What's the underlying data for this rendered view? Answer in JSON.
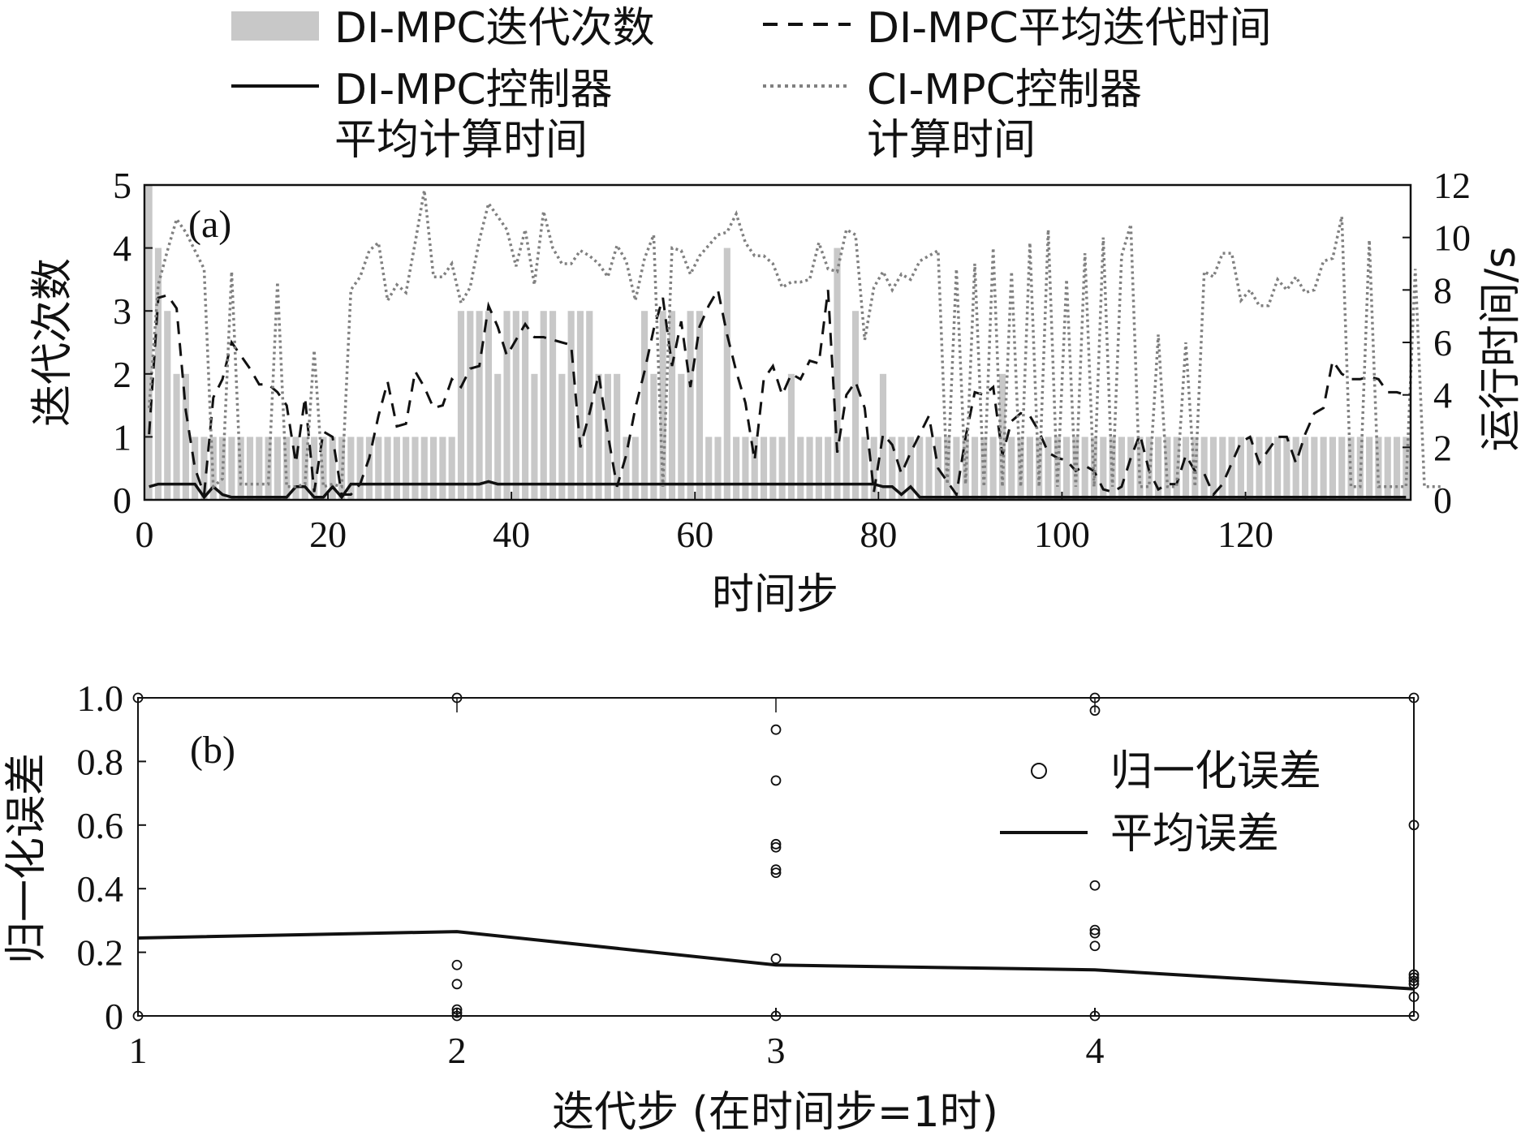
{
  "chart_data": [
    {
      "type": "bar+line",
      "panel_label": "(a)",
      "xlabel": "时间步",
      "ylabel_left": "迭代次数",
      "ylabel_right": "运行时间/s",
      "xlim": [
        0,
        138
      ],
      "ylim_left": [
        0,
        5
      ],
      "ylim_right": [
        0,
        12
      ],
      "x_ticks": [
        0,
        20,
        40,
        60,
        80,
        100,
        120
      ],
      "y_ticks_left": [
        0,
        1,
        2,
        3,
        4,
        5
      ],
      "y_ticks_right": [
        0,
        2,
        4,
        6,
        8,
        10,
        12
      ],
      "colors": {
        "bars": "#c8c8c8",
        "iter_time": "#111111",
        "di_comp": "#111111",
        "ci_comp": "#808080"
      },
      "legend": {
        "bars": "DI-MPC迭代次数",
        "iter_time": "DI-MPC平均迭代时间",
        "di_comp_line1": "DI-MPC控制器",
        "di_comp_line2": "平均计算时间",
        "ci_comp_line1": "CI-MPC控制器",
        "ci_comp_line2": "计算时间"
      },
      "iterations": [
        5,
        4,
        3,
        2,
        2,
        1,
        1,
        1,
        1,
        1,
        1,
        1,
        1,
        1,
        1,
        1,
        1,
        1,
        1,
        1,
        1,
        1,
        1,
        1,
        1,
        1,
        1,
        1,
        1,
        1,
        1,
        1,
        1,
        1,
        3,
        3,
        3,
        3,
        2,
        3,
        3,
        3,
        2,
        3,
        3,
        2,
        3,
        3,
        3,
        2,
        2,
        2,
        1,
        1,
        3,
        2,
        3,
        3,
        2,
        3,
        3,
        1,
        1,
        4,
        1,
        1,
        1,
        1,
        1,
        1,
        2,
        1,
        1,
        1,
        1,
        4,
        1,
        3,
        1,
        1,
        2,
        1,
        1,
        1,
        1,
        1,
        1,
        1,
        1,
        1,
        1,
        1,
        1,
        2,
        1,
        1,
        1,
        1,
        1,
        1,
        1,
        1,
        1,
        1,
        1,
        1,
        1,
        1,
        1,
        1,
        1,
        1,
        1,
        1,
        1,
        1,
        1,
        1,
        1,
        1,
        1,
        1,
        1,
        1,
        1,
        1,
        1,
        1,
        1,
        1,
        1,
        1,
        1,
        1,
        1,
        1,
        1,
        1
      ],
      "series": [
        {
          "name": "DI-MPC平均迭代时间",
          "style": "dashed",
          "values": [
            2.5,
            7.7,
            7.8,
            7.3,
            3.4,
            1.2,
            0.2,
            3.9,
            4.6,
            6.0,
            5.5,
            5.0,
            4.4,
            4.4,
            4.1,
            3.6,
            1.4,
            3.9,
            0.3,
            2.6,
            2.4,
            0.2,
            0.2,
            0.6,
            1.6,
            3.2,
            4.5,
            2.8,
            2.9,
            4.9,
            4.3,
            3.5,
            3.6,
            4.6,
            4.3,
            5.0,
            5.1,
            7.4,
            6.6,
            5.5,
            6.1,
            6.7,
            6.2,
            6.2,
            6.1,
            6.0,
            5.9,
            2.0,
            3.3,
            4.8,
            2.5,
            0.5,
            1.7,
            3.5,
            4.9,
            6.5,
            7.7,
            5.1,
            6.8,
            4.3,
            6.6,
            7.4,
            8.0,
            6.3,
            4.9,
            3.7,
            1.5,
            4.6,
            5.1,
            4.0,
            4.8,
            4.6,
            5.3,
            5.2,
            8.0,
            1.8,
            4.0,
            4.5,
            3.5,
            0.3,
            2.5,
            2.1,
            1.0,
            1.8,
            2.5,
            3.2,
            1.2,
            0.7,
            0.2,
            2.4,
            4.1,
            4.0,
            4.3,
            1.7,
            3.0,
            3.3,
            3.2,
            2.6,
            1.8,
            1.6,
            1.5,
            1.1,
            1.3,
            1.1,
            0.4,
            0.3,
            0.5,
            1.6,
            2.5,
            1.1,
            0.4,
            0.6,
            0.6,
            1.7,
            1.1,
            1.0,
            0.2,
            0.6,
            1.4,
            2.2,
            2.4,
            1.4,
            1.9,
            2.4,
            2.4,
            1.4,
            2.5,
            3.3,
            3.5,
            5.3,
            4.8,
            4.6,
            4.6,
            4.7,
            4.6,
            4.1,
            4.1,
            4.0
          ]
        },
        {
          "name": "DI-MPC控制器平均计算时间",
          "style": "solid",
          "values": [
            0.5,
            0.6,
            0.6,
            0.6,
            0.6,
            0.6,
            0.1,
            0.5,
            0.2,
            0.1,
            0.1,
            0.1,
            0.1,
            0.1,
            0.1,
            0.1,
            0.5,
            0.5,
            0.1,
            0.1,
            0.5,
            0.1,
            0.6,
            0.6,
            0.6,
            0.6,
            0.6,
            0.6,
            0.6,
            0.6,
            0.6,
            0.6,
            0.6,
            0.6,
            0.6,
            0.6,
            0.6,
            0.7,
            0.6,
            0.6,
            0.6,
            0.6,
            0.6,
            0.6,
            0.6,
            0.6,
            0.6,
            0.6,
            0.6,
            0.6,
            0.6,
            0.6,
            0.6,
            0.6,
            0.6,
            0.6,
            0.6,
            0.6,
            0.6,
            0.6,
            0.6,
            0.6,
            0.6,
            0.6,
            0.6,
            0.6,
            0.6,
            0.6,
            0.6,
            0.6,
            0.6,
            0.6,
            0.6,
            0.6,
            0.6,
            0.6,
            0.6,
            0.6,
            0.6,
            0.6,
            0.5,
            0.5,
            0.2,
            0.5,
            0.1,
            0.1,
            0.1,
            0.1,
            0.1,
            0.1,
            0.1,
            0.1,
            0.1,
            0.1,
            0.1,
            0.1,
            0.1,
            0.1,
            0.1,
            0.1,
            0.1,
            0.1,
            0.1,
            0.1,
            0.1,
            0.1,
            0.1,
            0.1,
            0.1,
            0.1,
            0.1,
            0.1,
            0.1,
            0.1,
            0.1,
            0.1,
            0.1,
            0.1,
            0.1,
            0.1,
            0.1,
            0.1,
            0.1,
            0.1,
            0.1,
            0.1,
            0.1,
            0.1,
            0.1,
            0.1,
            0.1,
            0.1,
            0.1,
            0.1,
            0.1,
            0.1,
            0.1,
            0.1
          ]
        },
        {
          "name": "CI-MPC控制器计算时间",
          "style": "dotted",
          "values": [
            3.5,
            8.2,
            9.5,
            10.7,
            10.2,
            9.5,
            8.8,
            0.5,
            0.8,
            8.7,
            0.6,
            0.6,
            0.6,
            0.6,
            8.3,
            0.5,
            0.5,
            0.6,
            5.7,
            0.5,
            0.6,
            0.5,
            8.0,
            8.5,
            9.5,
            9.8,
            7.6,
            8.2,
            7.9,
            9.8,
            11.8,
            8.5,
            8.5,
            9.0,
            7.5,
            8.1,
            9.9,
            11.3,
            10.8,
            10.3,
            8.9,
            10.3,
            8.2,
            11.0,
            9.6,
            9.0,
            9.0,
            9.5,
            9.3,
            9.0,
            8.5,
            9.7,
            9.1,
            7.6,
            9.2,
            10.1,
            0.5,
            9.6,
            9.5,
            8.6,
            9.3,
            9.7,
            10.1,
            10.2,
            10.9,
            9.8,
            9.3,
            9.3,
            9.0,
            8.1,
            8.3,
            8.3,
            8.4,
            9.8,
            8.8,
            8.7,
            10.3,
            10.1,
            6.1,
            8.1,
            8.7,
            8.0,
            8.6,
            8.4,
            9.1,
            9.3,
            9.5,
            0.6,
            8.8,
            0.6,
            9.0,
            0.5,
            9.6,
            0.5,
            8.7,
            0.5,
            9.8,
            0.5,
            10.3,
            0.5,
            8.4,
            0.5,
            9.4,
            0.5,
            10.0,
            0.5,
            9.3,
            10.5,
            0.5,
            0.5,
            6.3,
            0.5,
            0.5,
            6.0,
            0.5,
            8.7,
            8.5,
            9.4,
            9.4,
            7.6,
            8.0,
            7.4,
            7.4,
            8.4,
            8.0,
            8.5,
            7.9,
            8.0,
            9.1,
            9.2,
            10.8,
            0.5,
            0.5,
            9.9,
            0.5,
            0.5,
            0.5,
            0.5,
            8.8,
            0.5,
            0.5,
            0.5
          ]
        }
      ]
    },
    {
      "type": "scatter+line",
      "panel_label": "(b)",
      "xlabel": "迭代步 (在时间步=1时)",
      "ylabel": "归一化误差",
      "xlim": [
        1,
        5
      ],
      "ylim": [
        0,
        1.0
      ],
      "x_ticks": [
        1,
        2,
        3,
        4
      ],
      "y_tick_labels": [
        "0",
        "0.2",
        "0.4",
        "0.6",
        "0.8",
        "1.0"
      ],
      "legend": {
        "scatter": "归一化误差",
        "line": "平均误差"
      },
      "scatter": [
        {
          "x": 1,
          "y": 1.0
        },
        {
          "x": 1,
          "y": 0.0
        },
        {
          "x": 2,
          "y": 1.0
        },
        {
          "x": 2,
          "y": 0.16
        },
        {
          "x": 2,
          "y": 0.1
        },
        {
          "x": 2,
          "y": 0.02
        },
        {
          "x": 2,
          "y": 0.01
        },
        {
          "x": 2,
          "y": 0.0
        },
        {
          "x": 3,
          "y": 0.9
        },
        {
          "x": 3,
          "y": 0.74
        },
        {
          "x": 3,
          "y": 0.54
        },
        {
          "x": 3,
          "y": 0.53
        },
        {
          "x": 3,
          "y": 0.46
        },
        {
          "x": 3,
          "y": 0.45
        },
        {
          "x": 3,
          "y": 0.18
        },
        {
          "x": 3,
          "y": 0.0
        },
        {
          "x": 4,
          "y": 1.0
        },
        {
          "x": 4,
          "y": 0.96
        },
        {
          "x": 4,
          "y": 0.41
        },
        {
          "x": 4,
          "y": 0.27
        },
        {
          "x": 4,
          "y": 0.26
        },
        {
          "x": 4,
          "y": 0.22
        },
        {
          "x": 4,
          "y": 0.0
        },
        {
          "x": 5,
          "y": 1.0
        },
        {
          "x": 5,
          "y": 0.6
        },
        {
          "x": 5,
          "y": 0.13
        },
        {
          "x": 5,
          "y": 0.12
        },
        {
          "x": 5,
          "y": 0.11
        },
        {
          "x": 5,
          "y": 0.1
        },
        {
          "x": 5,
          "y": 0.06
        },
        {
          "x": 5,
          "y": 0.0
        }
      ],
      "series": [
        {
          "name": "平均误差",
          "x": [
            1,
            2,
            3,
            4,
            5
          ],
          "values": [
            0.245,
            0.265,
            0.16,
            0.145,
            0.085
          ]
        }
      ]
    }
  ]
}
